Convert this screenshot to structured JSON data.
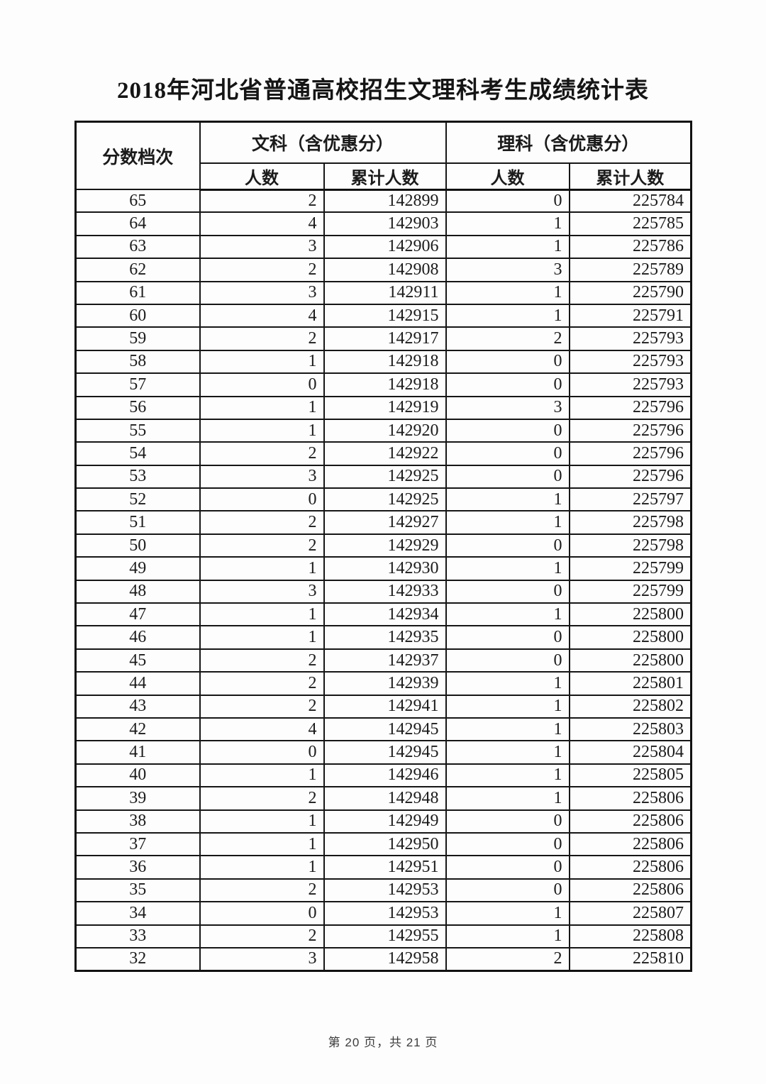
{
  "page": {
    "title": "2018年河北省普通高校招生文理科考生成绩统计表",
    "footer": "第 20 页，共 21 页"
  },
  "table": {
    "header": {
      "score_col": "分数档次",
      "arts_group": "文科（含优惠分）",
      "science_group": "理科（含优惠分）",
      "count_label": "人数",
      "cumulative_label": "累计人数"
    },
    "columns": [
      "score",
      "arts_count",
      "arts_cumulative",
      "science_count",
      "science_cumulative"
    ],
    "rows": [
      [
        "65",
        "2",
        "142899",
        "0",
        "225784"
      ],
      [
        "64",
        "4",
        "142903",
        "1",
        "225785"
      ],
      [
        "63",
        "3",
        "142906",
        "1",
        "225786"
      ],
      [
        "62",
        "2",
        "142908",
        "3",
        "225789"
      ],
      [
        "61",
        "3",
        "142911",
        "1",
        "225790"
      ],
      [
        "60",
        "4",
        "142915",
        "1",
        "225791"
      ],
      [
        "59",
        "2",
        "142917",
        "2",
        "225793"
      ],
      [
        "58",
        "1",
        "142918",
        "0",
        "225793"
      ],
      [
        "57",
        "0",
        "142918",
        "0",
        "225793"
      ],
      [
        "56",
        "1",
        "142919",
        "3",
        "225796"
      ],
      [
        "55",
        "1",
        "142920",
        "0",
        "225796"
      ],
      [
        "54",
        "2",
        "142922",
        "0",
        "225796"
      ],
      [
        "53",
        "3",
        "142925",
        "0",
        "225796"
      ],
      [
        "52",
        "0",
        "142925",
        "1",
        "225797"
      ],
      [
        "51",
        "2",
        "142927",
        "1",
        "225798"
      ],
      [
        "50",
        "2",
        "142929",
        "0",
        "225798"
      ],
      [
        "49",
        "1",
        "142930",
        "1",
        "225799"
      ],
      [
        "48",
        "3",
        "142933",
        "0",
        "225799"
      ],
      [
        "47",
        "1",
        "142934",
        "1",
        "225800"
      ],
      [
        "46",
        "1",
        "142935",
        "0",
        "225800"
      ],
      [
        "45",
        "2",
        "142937",
        "0",
        "225800"
      ],
      [
        "44",
        "2",
        "142939",
        "1",
        "225801"
      ],
      [
        "43",
        "2",
        "142941",
        "1",
        "225802"
      ],
      [
        "42",
        "4",
        "142945",
        "1",
        "225803"
      ],
      [
        "41",
        "0",
        "142945",
        "1",
        "225804"
      ],
      [
        "40",
        "1",
        "142946",
        "1",
        "225805"
      ],
      [
        "39",
        "2",
        "142948",
        "1",
        "225806"
      ],
      [
        "38",
        "1",
        "142949",
        "0",
        "225806"
      ],
      [
        "37",
        "1",
        "142950",
        "0",
        "225806"
      ],
      [
        "36",
        "1",
        "142951",
        "0",
        "225806"
      ],
      [
        "35",
        "2",
        "142953",
        "0",
        "225806"
      ],
      [
        "34",
        "0",
        "142953",
        "1",
        "225807"
      ],
      [
        "33",
        "2",
        "142955",
        "1",
        "225808"
      ],
      [
        "32",
        "3",
        "142958",
        "2",
        "225810"
      ]
    ]
  },
  "colors": {
    "text": "#1b1b1b",
    "border": "#161616",
    "background": "#fdfdfd"
  }
}
